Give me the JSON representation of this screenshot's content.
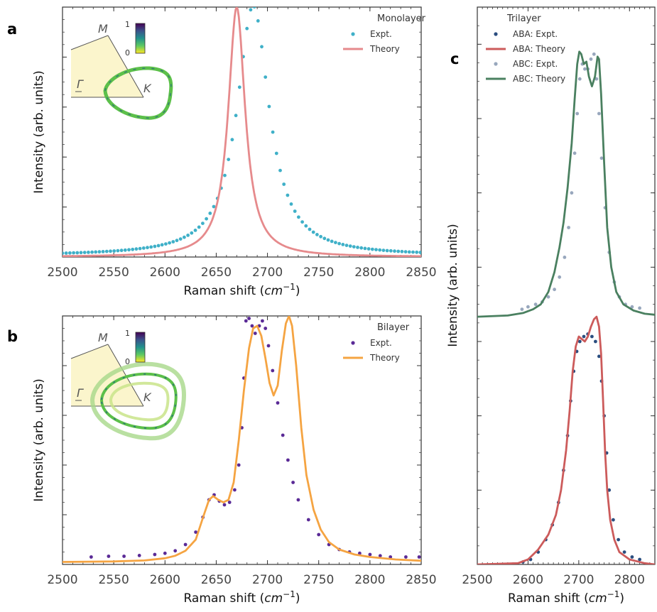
{
  "figure": {
    "panels": [
      "a",
      "b",
      "c"
    ],
    "xlabel_prefix": "Raman shift (",
    "xlabel_unit": "cm",
    "xlabel_exp": "−1",
    "xlabel_suffix": ")",
    "ylabel": "Intensity (arb. units)"
  },
  "colors": {
    "mono_expt": "#3fb0c8",
    "mono_theory": "#e68a8c",
    "bi_expt": "#5a2a96",
    "bi_theory": "#f5a442",
    "aba_expt": "#2a4d7f",
    "aba_theory": "#cc5b5b",
    "abc_expt": "#98a7bd",
    "abc_theory": "#4a8060",
    "inset_fill": "#fbf5cc"
  },
  "insets": {
    "labels": [
      "M",
      "Γ",
      "K"
    ],
    "colorbar_ticks": [
      "1",
      "0"
    ]
  },
  "chart_data": [
    {
      "panel": "a",
      "type": "line",
      "legend_title": "Monolayer",
      "legend_placement": "top-right",
      "xlim": [
        2500,
        2850
      ],
      "xticks": [
        "2500",
        "2550",
        "2600",
        "2650",
        "2700",
        "2750",
        "2800",
        "2850"
      ],
      "xlabel": "Raman shift (cm−1)",
      "ylabel": "Intensity (arb. units)",
      "ylim": [
        0,
        1
      ],
      "series": [
        {
          "name": "Expt.",
          "style": "scatter",
          "color_key": "mono_expt",
          "model": {
            "kind": "lorentz",
            "center": 2686,
            "hwhm": 19,
            "amp": 1.0,
            "base": 0.005,
            "x_from": 2500,
            "x_to": 2850,
            "step": 3.6
          }
        },
        {
          "name": "Theory",
          "style": "line",
          "color_key": "mono_theory",
          "model": {
            "kind": "lorentz",
            "center": 2670,
            "hwhm": 10,
            "amp": 1.0,
            "base": 0.0,
            "x_from": 2500,
            "x_to": 2850,
            "step": 1
          }
        }
      ]
    },
    {
      "panel": "b",
      "type": "line",
      "legend_title": "Bilayer",
      "legend_placement": "top-right",
      "xlim": [
        2500,
        2850
      ],
      "xticks": [
        "2500",
        "2550",
        "2600",
        "2650",
        "2700",
        "2750",
        "2800",
        "2850"
      ],
      "xlabel": "Raman shift (cm−1)",
      "ylabel": "Intensity (arb. units)",
      "ylim": [
        0,
        1
      ],
      "series": [
        {
          "name": "Expt.",
          "style": "scatter",
          "color_key": "bi_expt",
          "points": [
            [
              2528,
              0.03
            ],
            [
              2545,
              0.033
            ],
            [
              2560,
              0.033
            ],
            [
              2575,
              0.036
            ],
            [
              2590,
              0.04
            ],
            [
              2600,
              0.045
            ],
            [
              2610,
              0.055
            ],
            [
              2620,
              0.08
            ],
            [
              2630,
              0.13
            ],
            [
              2637,
              0.19
            ],
            [
              2643,
              0.26
            ],
            [
              2648,
              0.28
            ],
            [
              2653,
              0.255
            ],
            [
              2658,
              0.24
            ],
            [
              2663,
              0.25
            ],
            [
              2668,
              0.3
            ],
            [
              2672,
              0.4
            ],
            [
              2675,
              0.55
            ],
            [
              2677,
              0.75
            ],
            [
              2679,
              0.98
            ],
            [
              2682,
              0.99
            ],
            [
              2685,
              0.96
            ],
            [
              2688,
              0.93
            ],
            [
              2692,
              0.96
            ],
            [
              2695,
              0.98
            ],
            [
              2698,
              0.95
            ],
            [
              2701,
              0.88
            ],
            [
              2705,
              0.78
            ],
            [
              2710,
              0.65
            ],
            [
              2715,
              0.52
            ],
            [
              2720,
              0.42
            ],
            [
              2725,
              0.33
            ],
            [
              2730,
              0.26
            ],
            [
              2740,
              0.18
            ],
            [
              2750,
              0.12
            ],
            [
              2760,
              0.08
            ],
            [
              2770,
              0.06
            ],
            [
              2780,
              0.05
            ],
            [
              2790,
              0.045
            ],
            [
              2800,
              0.04
            ],
            [
              2810,
              0.035
            ],
            [
              2820,
              0.03
            ],
            [
              2835,
              0.03
            ],
            [
              2848,
              0.03
            ]
          ]
        },
        {
          "name": "Theory",
          "style": "line",
          "color_key": "bi_theory",
          "points": [
            [
              2500,
              0.01
            ],
            [
              2550,
              0.012
            ],
            [
              2580,
              0.016
            ],
            [
              2600,
              0.025
            ],
            [
              2610,
              0.035
            ],
            [
              2620,
              0.055
            ],
            [
              2630,
              0.1
            ],
            [
              2638,
              0.2
            ],
            [
              2643,
              0.26
            ],
            [
              2647,
              0.275
            ],
            [
              2652,
              0.26
            ],
            [
              2657,
              0.25
            ],
            [
              2662,
              0.26
            ],
            [
              2667,
              0.33
            ],
            [
              2672,
              0.5
            ],
            [
              2677,
              0.7
            ],
            [
              2682,
              0.87
            ],
            [
              2686,
              0.95
            ],
            [
              2690,
              0.96
            ],
            [
              2694,
              0.92
            ],
            [
              2698,
              0.83
            ],
            [
              2702,
              0.73
            ],
            [
              2706,
              0.68
            ],
            [
              2710,
              0.72
            ],
            [
              2714,
              0.86
            ],
            [
              2718,
              0.97
            ],
            [
              2721,
              1.0
            ],
            [
              2724,
              0.96
            ],
            [
              2728,
              0.8
            ],
            [
              2733,
              0.55
            ],
            [
              2738,
              0.36
            ],
            [
              2745,
              0.22
            ],
            [
              2752,
              0.14
            ],
            [
              2760,
              0.09
            ],
            [
              2770,
              0.06
            ],
            [
              2785,
              0.04
            ],
            [
              2800,
              0.03
            ],
            [
              2825,
              0.02
            ],
            [
              2850,
              0.015
            ]
          ]
        }
      ]
    },
    {
      "panel": "c",
      "type": "line",
      "legend_title": "Trilayer",
      "legend_placement": "top-left",
      "xlim": [
        2500,
        2850
      ],
      "xticks": [
        "2500",
        "2600",
        "2700",
        "2800"
      ],
      "xlabel": "Raman shift (cm−1)",
      "ylabel": "Intensity (arb. units)",
      "ylim": [
        0,
        2.25
      ],
      "series": [
        {
          "name": "ABA: Expt.",
          "style": "scatter",
          "color_key": "aba_expt",
          "points": [
            [
              2590,
              0.01
            ],
            [
              2605,
              0.02
            ],
            [
              2620,
              0.05
            ],
            [
              2635,
              0.1
            ],
            [
              2648,
              0.16
            ],
            [
              2660,
              0.25
            ],
            [
              2670,
              0.38
            ],
            [
              2678,
              0.52
            ],
            [
              2684,
              0.66
            ],
            [
              2690,
              0.78
            ],
            [
              2696,
              0.86
            ],
            [
              2702,
              0.9
            ],
            [
              2710,
              0.92
            ],
            [
              2718,
              0.93
            ],
            [
              2726,
              0.92
            ],
            [
              2733,
              0.9
            ],
            [
              2740,
              0.84
            ],
            [
              2745,
              0.74
            ],
            [
              2750,
              0.6
            ],
            [
              2755,
              0.45
            ],
            [
              2760,
              0.3
            ],
            [
              2768,
              0.18
            ],
            [
              2778,
              0.1
            ],
            [
              2790,
              0.05
            ],
            [
              2805,
              0.03
            ],
            [
              2820,
              0.02
            ]
          ]
        },
        {
          "name": "ABA: Theory",
          "style": "line",
          "color_key": "aba_theory",
          "points": [
            [
              2500,
              0.0
            ],
            [
              2580,
              0.005
            ],
            [
              2600,
              0.02
            ],
            [
              2620,
              0.06
            ],
            [
              2640,
              0.12
            ],
            [
              2655,
              0.2
            ],
            [
              2665,
              0.3
            ],
            [
              2675,
              0.46
            ],
            [
              2682,
              0.62
            ],
            [
              2688,
              0.78
            ],
            [
              2694,
              0.88
            ],
            [
              2700,
              0.92
            ],
            [
              2706,
              0.91
            ],
            [
              2712,
              0.9
            ],
            [
              2718,
              0.92
            ],
            [
              2724,
              0.96
            ],
            [
              2730,
              0.99
            ],
            [
              2735,
              1.0
            ],
            [
              2740,
              0.96
            ],
            [
              2744,
              0.85
            ],
            [
              2748,
              0.66
            ],
            [
              2752,
              0.45
            ],
            [
              2756,
              0.3
            ],
            [
              2762,
              0.18
            ],
            [
              2770,
              0.1
            ],
            [
              2780,
              0.05
            ],
            [
              2800,
              0.02
            ],
            [
              2830,
              0.005
            ],
            [
              2850,
              0.0
            ]
          ]
        },
        {
          "name": "ABC: Expt.",
          "style": "scatter",
          "color_key": "abc_expt",
          "points": [
            [
              2588,
              1.03
            ],
            [
              2600,
              1.04
            ],
            [
              2615,
              1.05
            ],
            [
              2628,
              1.06
            ],
            [
              2640,
              1.08
            ],
            [
              2652,
              1.11
            ],
            [
              2662,
              1.16
            ],
            [
              2672,
              1.24
            ],
            [
              2680,
              1.36
            ],
            [
              2686,
              1.5
            ],
            [
              2692,
              1.66
            ],
            [
              2697,
              1.82
            ],
            [
              2702,
              1.96
            ],
            [
              2707,
              2.02
            ],
            [
              2712,
              2.0
            ],
            [
              2718,
              2.0
            ],
            [
              2724,
              2.04
            ],
            [
              2730,
              2.06
            ],
            [
              2735,
              1.96
            ],
            [
              2740,
              1.82
            ],
            [
              2745,
              1.64
            ],
            [
              2752,
              1.44
            ],
            [
              2760,
              1.26
            ],
            [
              2770,
              1.14
            ],
            [
              2780,
              1.08
            ],
            [
              2792,
              1.05
            ],
            [
              2805,
              1.04
            ],
            [
              2820,
              1.035
            ]
          ]
        },
        {
          "name": "ABC: Theory",
          "style": "line",
          "color_key": "abc_theory",
          "points": [
            [
              2500,
              1.0
            ],
            [
              2560,
              1.005
            ],
            [
              2590,
              1.015
            ],
            [
              2610,
              1.03
            ],
            [
              2625,
              1.05
            ],
            [
              2640,
              1.1
            ],
            [
              2652,
              1.18
            ],
            [
              2662,
              1.28
            ],
            [
              2670,
              1.38
            ],
            [
              2678,
              1.52
            ],
            [
              2686,
              1.7
            ],
            [
              2692,
              1.88
            ],
            [
              2697,
              2.02
            ],
            [
              2701,
              2.07
            ],
            [
              2705,
              2.06
            ],
            [
              2710,
              2.02
            ],
            [
              2715,
              2.03
            ],
            [
              2720,
              1.97
            ],
            [
              2726,
              1.93
            ],
            [
              2732,
              1.97
            ],
            [
              2737,
              2.05
            ],
            [
              2740,
              2.04
            ],
            [
              2744,
              1.9
            ],
            [
              2750,
              1.62
            ],
            [
              2756,
              1.36
            ],
            [
              2764,
              1.2
            ],
            [
              2774,
              1.1
            ],
            [
              2788,
              1.05
            ],
            [
              2808,
              1.025
            ],
            [
              2830,
              1.012
            ],
            [
              2850,
              1.008
            ]
          ]
        }
      ]
    }
  ]
}
